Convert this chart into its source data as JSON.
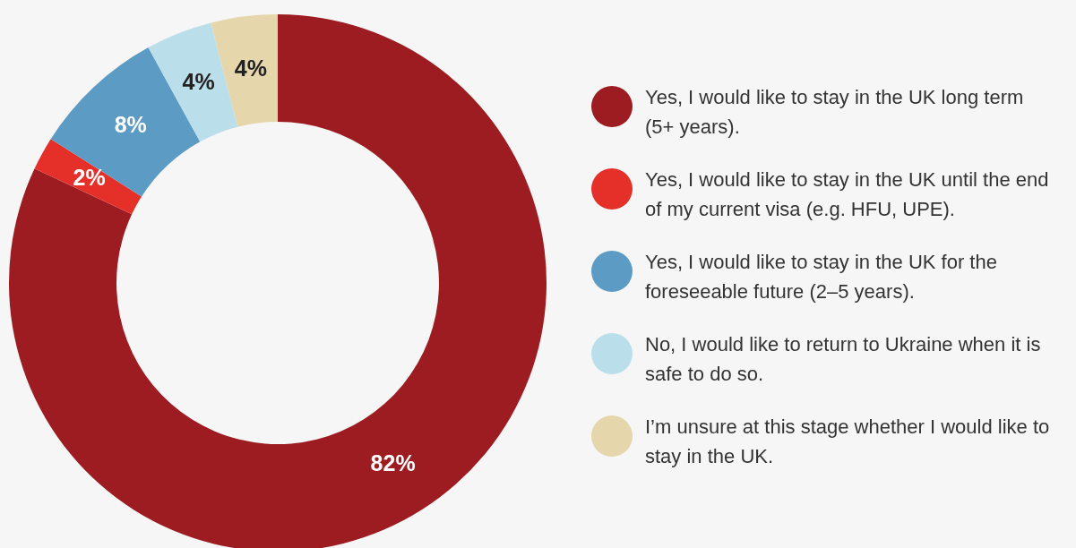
{
  "chart_data": {
    "type": "donut",
    "categories": [
      "Yes, I would like to stay in the UK long term (5+ years).",
      "Yes, I would like to stay in the UK until the end of my current visa (e.g. HFU, UPE).",
      "Yes, I would like to stay in the UK for the foreseeable future (2–5 years).",
      "No, I would like to return to Ukraine when it is safe to do so.",
      "I’m unsure at this stage whether I would like to stay in the UK."
    ],
    "values": [
      82,
      2,
      8,
      4,
      4
    ],
    "colors": [
      "#9c1c21",
      "#e5302a",
      "#5b9bc4",
      "#badeea",
      "#e5d6ac"
    ],
    "value_labels": [
      "82%",
      "2%",
      "8%",
      "4%",
      "4%"
    ],
    "legend": "right"
  }
}
